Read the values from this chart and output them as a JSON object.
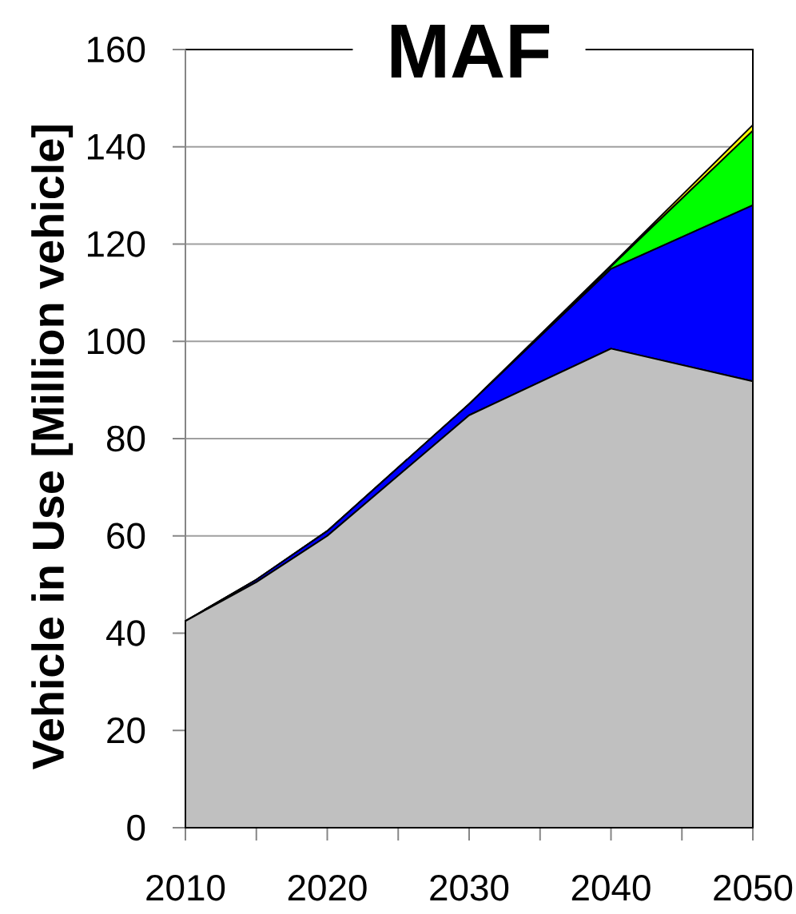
{
  "chart_data": {
    "type": "area",
    "title": "MAF",
    "ylabel": "Vehicle in Use [Million vehicle]",
    "stacked": true,
    "grid": "y",
    "x": [
      2010,
      2015,
      2020,
      2030,
      2040,
      2050
    ],
    "series": [
      {
        "color": "#c0c0c0",
        "values": [
          42.5,
          50.5,
          60,
          84.8,
          98.5,
          91.8
        ]
      },
      {
        "color": "#0000ff",
        "values": [
          0,
          0.5,
          1,
          2.3,
          16.4,
          36.2
        ]
      },
      {
        "color": "#00ff00",
        "values": [
          0,
          0,
          0,
          0,
          0.5,
          15.3
        ]
      },
      {
        "color": "#ffff00",
        "values": [
          0,
          0,
          0,
          0,
          0.2,
          1.2
        ]
      }
    ],
    "xlim": [
      2010,
      2050
    ],
    "xticks": [
      2010,
      {
        "value": 2015,
        "label": null
      },
      2020,
      {
        "value": 2025,
        "label": null
      },
      2030,
      {
        "value": 2035,
        "label": null
      },
      2040,
      {
        "value": 2045,
        "label": null
      },
      2050
    ],
    "ylim": [
      0,
      160
    ],
    "yticks": [
      0,
      20,
      40,
      60,
      80,
      100,
      120,
      140,
      160
    ]
  }
}
